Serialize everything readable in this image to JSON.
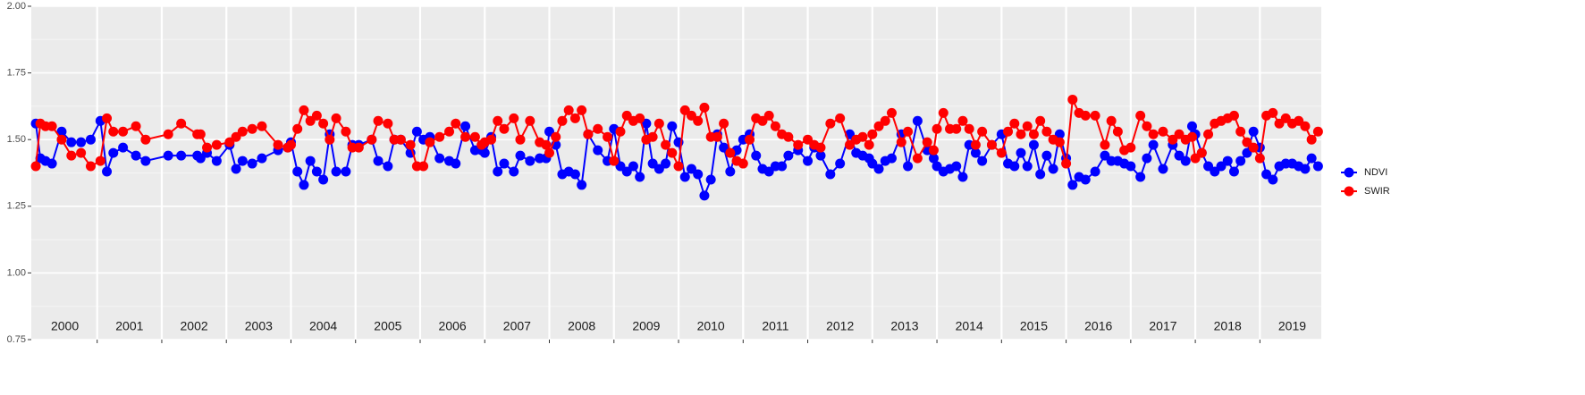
{
  "chart_data": {
    "type": "line",
    "x": [
      2000.05,
      2000.12,
      2000.2,
      2000.3,
      2000.45,
      2000.6,
      2000.75,
      2000.9,
      2001.05,
      2001.15,
      2001.25,
      2001.4,
      2001.6,
      2001.75,
      2002.1,
      2002.3,
      2002.55,
      2002.6,
      2002.7,
      2002.85,
      2003.05,
      2003.15,
      2003.25,
      2003.4,
      2003.55,
      2003.8,
      2003.95,
      2004.0,
      2004.1,
      2004.2,
      2004.3,
      2004.4,
      2004.5,
      2004.6,
      2004.7,
      2004.85,
      2004.95,
      2005.05,
      2005.25,
      2005.35,
      2005.5,
      2005.6,
      2005.7,
      2005.85,
      2005.95,
      2006.05,
      2006.15,
      2006.3,
      2006.45,
      2006.55,
      2006.7,
      2006.85,
      2006.95,
      2007.0,
      2007.1,
      2007.2,
      2007.3,
      2007.45,
      2007.55,
      2007.7,
      2007.85,
      2007.95,
      2008.0,
      2008.1,
      2008.2,
      2008.3,
      2008.4,
      2008.5,
      2008.6,
      2008.75,
      2008.9,
      2009.0,
      2009.1,
      2009.2,
      2009.3,
      2009.4,
      2009.5,
      2009.6,
      2009.7,
      2009.8,
      2009.9,
      2010.0,
      2010.1,
      2010.2,
      2010.3,
      2010.4,
      2010.5,
      2010.6,
      2010.7,
      2010.8,
      2010.9,
      2011.0,
      2011.1,
      2011.2,
      2011.3,
      2011.4,
      2011.5,
      2011.6,
      2011.7,
      2011.85,
      2012.0,
      2012.1,
      2012.2,
      2012.35,
      2012.5,
      2012.65,
      2012.75,
      2012.85,
      2012.95,
      2013.0,
      2013.1,
      2013.2,
      2013.3,
      2013.45,
      2013.55,
      2013.7,
      2013.85,
      2013.95,
      2014.0,
      2014.1,
      2014.2,
      2014.3,
      2014.4,
      2014.5,
      2014.6,
      2014.7,
      2014.85,
      2015.0,
      2015.1,
      2015.2,
      2015.3,
      2015.4,
      2015.5,
      2015.6,
      2015.7,
      2015.8,
      2015.9,
      2016.0,
      2016.1,
      2016.2,
      2016.3,
      2016.45,
      2016.6,
      2016.7,
      2016.8,
      2016.9,
      2017.0,
      2017.15,
      2017.25,
      2017.35,
      2017.5,
      2017.65,
      2017.75,
      2017.85,
      2017.95,
      2018.0,
      2018.1,
      2018.2,
      2018.3,
      2018.4,
      2018.5,
      2018.6,
      2018.7,
      2018.8,
      2018.9,
      2019.0,
      2019.1,
      2019.2,
      2019.3,
      2019.4,
      2019.5,
      2019.6,
      2019.7,
      2019.8,
      2019.9
    ],
    "series": [
      {
        "name": "NDVI",
        "color": "#0000ff",
        "values": [
          1.56,
          1.43,
          1.42,
          1.41,
          1.53,
          1.49,
          1.49,
          1.5,
          1.57,
          1.38,
          1.45,
          1.47,
          1.44,
          1.42,
          1.44,
          1.44,
          1.44,
          1.43,
          1.45,
          1.42,
          1.48,
          1.39,
          1.42,
          1.41,
          1.43,
          1.46,
          1.47,
          1.49,
          1.38,
          1.33,
          1.42,
          1.38,
          1.35,
          1.52,
          1.38,
          1.38,
          1.48,
          1.48,
          1.5,
          1.42,
          1.4,
          1.5,
          1.5,
          1.45,
          1.53,
          1.5,
          1.51,
          1.43,
          1.42,
          1.41,
          1.55,
          1.46,
          1.46,
          1.45,
          1.51,
          1.38,
          1.41,
          1.38,
          1.44,
          1.42,
          1.43,
          1.43,
          1.53,
          1.48,
          1.37,
          1.38,
          1.37,
          1.33,
          1.52,
          1.46,
          1.42,
          1.54,
          1.4,
          1.38,
          1.4,
          1.36,
          1.56,
          1.41,
          1.39,
          1.41,
          1.55,
          1.49,
          1.36,
          1.39,
          1.37,
          1.29,
          1.35,
          1.52,
          1.47,
          1.38,
          1.46,
          1.5,
          1.52,
          1.44,
          1.39,
          1.38,
          1.4,
          1.4,
          1.44,
          1.46,
          1.42,
          1.47,
          1.44,
          1.37,
          1.41,
          1.52,
          1.45,
          1.44,
          1.43,
          1.41,
          1.39,
          1.42,
          1.43,
          1.52,
          1.4,
          1.57,
          1.46,
          1.43,
          1.4,
          1.38,
          1.39,
          1.4,
          1.36,
          1.48,
          1.45,
          1.42,
          1.48,
          1.52,
          1.41,
          1.4,
          1.45,
          1.4,
          1.48,
          1.37,
          1.44,
          1.39,
          1.52,
          1.43,
          1.33,
          1.36,
          1.35,
          1.38,
          1.44,
          1.42,
          1.42,
          1.41,
          1.4,
          1.36,
          1.43,
          1.48,
          1.39,
          1.48,
          1.44,
          1.42,
          1.55,
          1.52,
          1.45,
          1.4,
          1.38,
          1.4,
          1.42,
          1.38,
          1.42,
          1.45,
          1.53,
          1.47,
          1.37,
          1.35,
          1.4,
          1.41,
          1.41,
          1.4,
          1.39,
          1.43,
          1.4
        ]
      },
      {
        "name": "SWIR",
        "color": "#ff0000",
        "values": [
          1.4,
          1.56,
          1.55,
          1.55,
          1.5,
          1.44,
          1.45,
          1.4,
          1.42,
          1.58,
          1.53,
          1.53,
          1.55,
          1.5,
          1.52,
          1.56,
          1.52,
          1.52,
          1.47,
          1.48,
          1.49,
          1.51,
          1.53,
          1.54,
          1.55,
          1.48,
          1.47,
          1.48,
          1.54,
          1.61,
          1.57,
          1.59,
          1.56,
          1.5,
          1.58,
          1.53,
          1.47,
          1.47,
          1.5,
          1.57,
          1.56,
          1.5,
          1.5,
          1.48,
          1.4,
          1.4,
          1.49,
          1.51,
          1.53,
          1.56,
          1.51,
          1.51,
          1.48,
          1.49,
          1.5,
          1.57,
          1.54,
          1.58,
          1.5,
          1.57,
          1.49,
          1.48,
          1.45,
          1.51,
          1.57,
          1.61,
          1.58,
          1.61,
          1.52,
          1.54,
          1.51,
          1.42,
          1.53,
          1.59,
          1.57,
          1.58,
          1.5,
          1.51,
          1.56,
          1.48,
          1.45,
          1.4,
          1.61,
          1.59,
          1.57,
          1.62,
          1.51,
          1.51,
          1.56,
          1.45,
          1.42,
          1.41,
          1.5,
          1.58,
          1.57,
          1.59,
          1.55,
          1.52,
          1.51,
          1.48,
          1.5,
          1.48,
          1.47,
          1.56,
          1.58,
          1.48,
          1.5,
          1.51,
          1.48,
          1.52,
          1.55,
          1.57,
          1.6,
          1.49,
          1.53,
          1.43,
          1.49,
          1.46,
          1.54,
          1.6,
          1.54,
          1.54,
          1.57,
          1.54,
          1.48,
          1.53,
          1.48,
          1.45,
          1.53,
          1.56,
          1.52,
          1.55,
          1.52,
          1.57,
          1.53,
          1.5,
          1.49,
          1.41,
          1.65,
          1.6,
          1.59,
          1.59,
          1.48,
          1.57,
          1.53,
          1.46,
          1.47,
          1.59,
          1.55,
          1.52,
          1.53,
          1.5,
          1.52,
          1.5,
          1.51,
          1.43,
          1.45,
          1.52,
          1.56,
          1.57,
          1.58,
          1.59,
          1.53,
          1.49,
          1.47,
          1.43,
          1.59,
          1.6,
          1.56,
          1.58,
          1.56,
          1.57,
          1.55,
          1.5,
          1.53
        ]
      }
    ],
    "xlim": [
      1999.98,
      2019.95
    ],
    "xticks": [
      {
        "value": 2000.5,
        "label": "2000"
      },
      {
        "value": 2001.5,
        "label": "2001"
      },
      {
        "value": 2002.5,
        "label": "2002"
      },
      {
        "value": 2003.5,
        "label": "2003"
      },
      {
        "value": 2004.5,
        "label": "2004"
      },
      {
        "value": 2005.5,
        "label": "2005"
      },
      {
        "value": 2006.5,
        "label": "2006"
      },
      {
        "value": 2007.5,
        "label": "2007"
      },
      {
        "value": 2008.5,
        "label": "2008"
      },
      {
        "value": 2009.5,
        "label": "2009"
      },
      {
        "value": 2010.5,
        "label": "2010"
      },
      {
        "value": 2011.5,
        "label": "2011"
      },
      {
        "value": 2012.5,
        "label": "2012"
      },
      {
        "value": 2013.5,
        "label": "2013"
      },
      {
        "value": 2014.5,
        "label": "2014"
      },
      {
        "value": 2015.5,
        "label": "2015"
      },
      {
        "value": 2016.5,
        "label": "2016"
      },
      {
        "value": 2017.5,
        "label": "2017"
      },
      {
        "value": 2018.5,
        "label": "2018"
      },
      {
        "value": 2019.5,
        "label": "2019"
      }
    ],
    "ylim": [
      0.75,
      2.0
    ],
    "yticks": [
      0.75,
      {
        "value": 1.0,
        "label": "1.00"
      },
      1.25,
      {
        "value": 1.5,
        "label": "1.50"
      },
      1.75,
      {
        "value": 2.0,
        "label": "2.00"
      }
    ],
    "grid": true,
    "legend": "right"
  }
}
